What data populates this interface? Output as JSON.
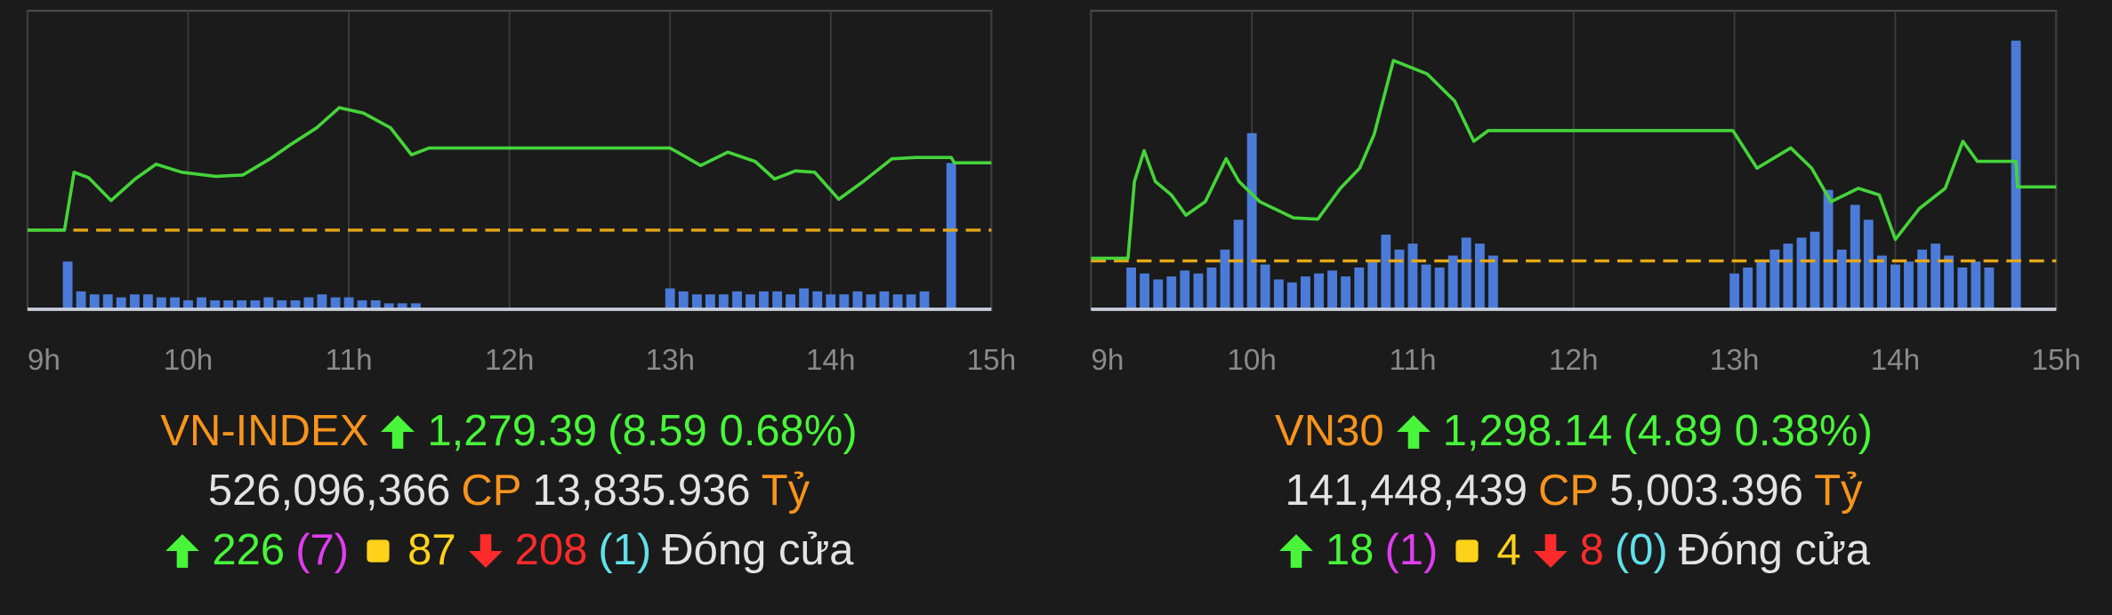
{
  "chart_data": [
    {
      "type": "line",
      "xlim": [
        9,
        15
      ],
      "xticks": [
        {
          "value": 9,
          "label": "9h"
        },
        {
          "value": 10,
          "label": "10h"
        },
        {
          "value": 11,
          "label": "11h"
        },
        {
          "value": 12,
          "label": "12h"
        },
        {
          "value": 13,
          "label": "13h"
        },
        {
          "value": 14,
          "label": "14h"
        },
        {
          "value": 15,
          "label": "15h"
        }
      ],
      "ylim": [
        1260.7,
        1298.8
      ],
      "y2lim": [
        0,
        100
      ],
      "grid": true,
      "reference_line": {
        "value": 1270.8,
        "color": "#e6a817"
      },
      "series": [
        {
          "type": "bar",
          "axis": "y2",
          "color": "#4a7bd8",
          "x": [
            9.25,
            9.333,
            9.417,
            9.5,
            9.583,
            9.667,
            9.75,
            9.833,
            9.917,
            10,
            10.083,
            10.167,
            10.25,
            10.333,
            10.417,
            10.5,
            10.583,
            10.667,
            10.75,
            10.833,
            10.917,
            11,
            11.083,
            11.167,
            11.25,
            11.333,
            11.417,
            13,
            13.083,
            13.167,
            13.25,
            13.333,
            13.417,
            13.5,
            13.583,
            13.667,
            13.75,
            13.833,
            13.917,
            14,
            14.083,
            14.167,
            14.25,
            14.333,
            14.417,
            14.5,
            14.583,
            14.75
          ],
          "values": [
            16,
            6,
            5,
            5,
            4,
            5,
            5,
            4,
            4,
            3,
            4,
            3,
            3,
            3,
            3,
            4,
            3,
            3,
            4,
            5,
            4,
            4,
            3,
            3,
            2,
            2,
            2,
            7,
            6,
            5,
            5,
            5,
            6,
            5,
            6,
            6,
            5,
            7,
            6,
            5,
            5,
            6,
            5,
            6,
            5,
            5,
            6,
            49
          ]
        },
        {
          "color": "#45d43a",
          "x": [
            9,
            9.23,
            9.29,
            9.38,
            9.52,
            9.67,
            9.8,
            9.96,
            10.17,
            10.34,
            10.51,
            10.63,
            10.8,
            10.94,
            11.09,
            11.26,
            11.39,
            11.5,
            13,
            13.03,
            13.19,
            13.36,
            13.53,
            13.65,
            13.78,
            13.9,
            14.05,
            14.2,
            14.38,
            14.53,
            14.75,
            14.77,
            15
          ],
          "values": [
            1270.8,
            1270.8,
            1278.19,
            1277.5,
            1274.58,
            1277.33,
            1279.22,
            1278.19,
            1277.67,
            1277.84,
            1279.9,
            1281.62,
            1283.86,
            1286.43,
            1285.75,
            1283.86,
            1280.42,
            1281.28,
            1281.28,
            1280.94,
            1279.05,
            1280.76,
            1279.56,
            1277.33,
            1278.36,
            1278.19,
            1274.75,
            1276.98,
            1279.9,
            1280.08,
            1280.08,
            1279.39,
            1279.39
          ]
        }
      ],
      "summary": {
        "name": "VN-INDEX",
        "value": "1,279.39",
        "change": "(8.59 0.68%)",
        "volume": "526,096,366",
        "volume_unit": "CP",
        "turnover": "13,835.936",
        "turnover_unit": "Tỷ",
        "advances": "226",
        "advances_ceiling": "(7)",
        "unchanged": "87",
        "declines": "208",
        "declines_floor": "(1)",
        "status": "Đóng cửa"
      }
    },
    {
      "type": "line",
      "xlim": [
        9,
        15
      ],
      "xticks": [
        {
          "value": 9,
          "label": "9h"
        },
        {
          "value": 10,
          "label": "10h"
        },
        {
          "value": 11,
          "label": "11h"
        },
        {
          "value": 12,
          "label": "12h"
        },
        {
          "value": 13,
          "label": "13h"
        },
        {
          "value": 14,
          "label": "14h"
        },
        {
          "value": 15,
          "label": "15h"
        }
      ],
      "ylim": [
        1290.05,
        1309.79
      ],
      "y2lim": [
        0,
        100
      ],
      "grid": true,
      "reference_line": {
        "value": 1293.25,
        "color": "#e6a817"
      },
      "series": [
        {
          "type": "bar",
          "axis": "y2",
          "color": "#4a7bd8",
          "x": [
            9.25,
            9.333,
            9.417,
            9.5,
            9.583,
            9.667,
            9.75,
            9.833,
            9.917,
            10,
            10.083,
            10.167,
            10.25,
            10.333,
            10.417,
            10.5,
            10.583,
            10.667,
            10.75,
            10.833,
            10.917,
            11,
            11.083,
            11.167,
            11.25,
            11.333,
            11.417,
            11.5,
            13,
            13.083,
            13.167,
            13.25,
            13.333,
            13.417,
            13.5,
            13.583,
            13.667,
            13.75,
            13.833,
            13.917,
            14,
            14.083,
            14.167,
            14.25,
            14.333,
            14.417,
            14.5,
            14.583,
            14.75
          ],
          "values": [
            14,
            12,
            10,
            11,
            13,
            12,
            14,
            20,
            30,
            59,
            15,
            10,
            9,
            11,
            12,
            13,
            11,
            14,
            16,
            25,
            20,
            22,
            15,
            14,
            18,
            24,
            22,
            18,
            12,
            14,
            16,
            20,
            22,
            24,
            26,
            40,
            20,
            35,
            30,
            18,
            15,
            16,
            20,
            22,
            18,
            14,
            16,
            14,
            90
          ]
        },
        {
          "color": "#45d43a",
          "x": [
            9,
            9.23,
            9.27,
            9.33,
            9.4,
            9.5,
            9.59,
            9.71,
            9.84,
            9.92,
            10.05,
            10.26,
            10.41,
            10.55,
            10.67,
            10.76,
            10.88,
            11.09,
            11.26,
            11.38,
            11.47,
            12.99,
            13.14,
            13.35,
            13.48,
            13.6,
            13.77,
            13.9,
            14,
            14.15,
            14.31,
            14.42,
            14.51,
            14.75,
            14.76,
            15
          ],
          "values": [
            1293.43,
            1293.43,
            1298.5,
            1300.54,
            1298.5,
            1297.61,
            1296.27,
            1297.16,
            1300.01,
            1298.5,
            1297.16,
            1296.09,
            1296.01,
            1298.05,
            1299.38,
            1301.61,
            1306.5,
            1305.61,
            1303.83,
            1301.16,
            1301.87,
            1301.87,
            1299.38,
            1300.72,
            1299.38,
            1297.16,
            1298.05,
            1297.61,
            1294.67,
            1296.72,
            1298.05,
            1301.16,
            1299.83,
            1299.83,
            1298.14,
            1298.14
          ]
        }
      ],
      "summary": {
        "name": "VN30",
        "value": "1,298.14",
        "change": "(4.89 0.38%)",
        "volume": "141,448,439",
        "volume_unit": "CP",
        "turnover": "5,003.396",
        "turnover_unit": "Tỷ",
        "advances": "18",
        "advances_ceiling": "(1)",
        "unchanged": "4",
        "declines": "8",
        "declines_floor": "(0)",
        "status": "Đóng cửa"
      }
    }
  ]
}
